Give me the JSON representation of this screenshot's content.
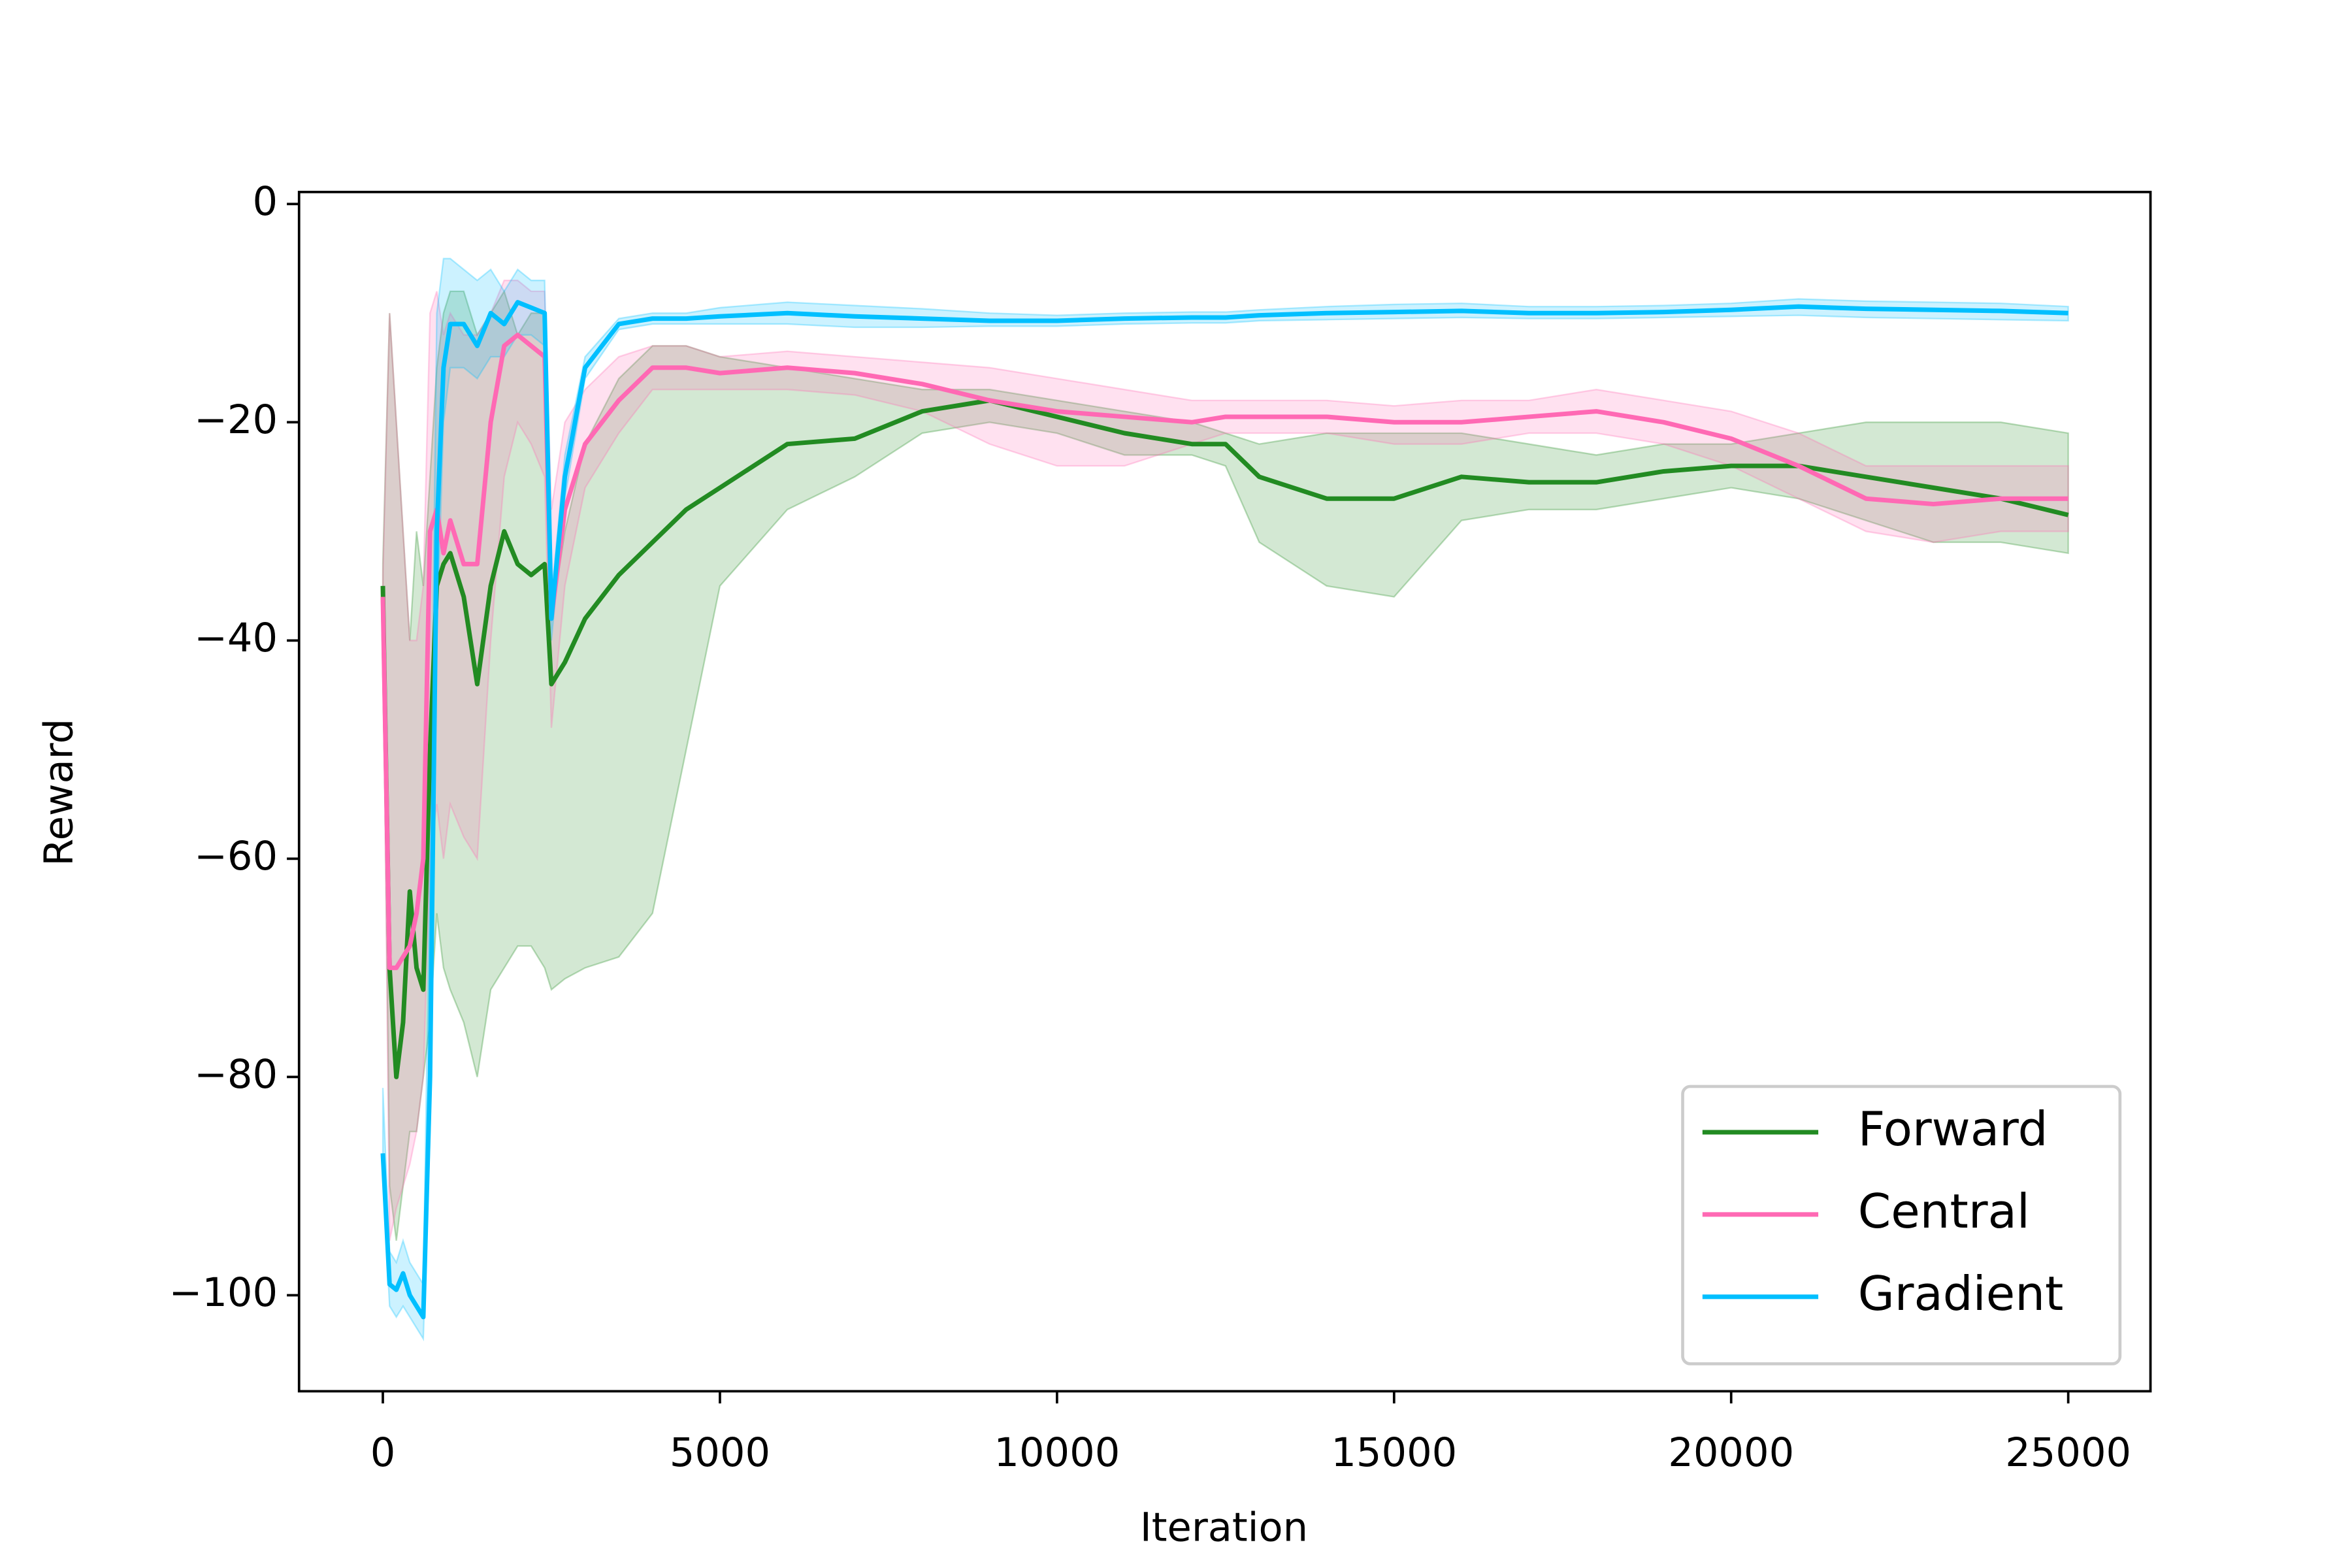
{
  "chart_data": {
    "type": "line",
    "x_label": "Iteration",
    "y_label": "Reward",
    "xlim": [
      -1243,
      26220
    ],
    "ylim": [
      -108.8,
      1.1
    ],
    "xticks": [
      0,
      5000,
      10000,
      15000,
      20000,
      25000
    ],
    "yticks": [
      0,
      {
        "value": -20,
        "label": "−20"
      },
      {
        "value": -40,
        "label": "−40"
      },
      {
        "value": -60,
        "label": "−60"
      },
      {
        "value": -80,
        "label": "−80"
      },
      {
        "value": -100,
        "label": "−100"
      }
    ],
    "legend": "lower right",
    "x": [
      0,
      100,
      200,
      300,
      400,
      500,
      600,
      700,
      800,
      900,
      1000,
      1200,
      1400,
      1600,
      1800,
      2000,
      2200,
      2400,
      2500,
      2700,
      3000,
      3500,
      4000,
      4500,
      5000,
      6000,
      7000,
      8000,
      9000,
      10000,
      11000,
      12000,
      12500,
      13000,
      14000,
      15000,
      16000,
      17000,
      18000,
      19000,
      20000,
      21000,
      22000,
      23000,
      24000,
      25000
    ],
    "series": [
      {
        "name": "Forward",
        "color": "#228b22",
        "values": [
          -35,
          -70,
          -80,
          -75,
          -63,
          -70,
          -72,
          -50,
          -35,
          -33,
          -32,
          -36,
          -44,
          -35,
          -30,
          -33,
          -34,
          -33,
          -44,
          -42,
          -38,
          -34,
          -31,
          -28,
          -26,
          -22,
          -21.5,
          -19,
          -18,
          -19.5,
          -21,
          -22,
          -22,
          -25,
          -27,
          -27,
          -25,
          -25.5,
          -25.5,
          -24.5,
          -24,
          -24,
          -25,
          -26,
          -27,
          -28.5
        ],
        "lower": [
          -36,
          -90,
          -95,
          -90,
          -85,
          -85,
          -80,
          -75,
          -65,
          -70,
          -72,
          -75,
          -80,
          -72,
          -70,
          -68,
          -68,
          -70,
          -72,
          -71,
          -70,
          -69,
          -65,
          -50,
          -35,
          -28,
          -25,
          -21,
          -20,
          -21,
          -23,
          -23,
          -24,
          -31,
          -35,
          -36,
          -29,
          -28,
          -28,
          -27,
          -26,
          -27,
          -29,
          -31,
          -31,
          -32
        ],
        "upper": [
          -33,
          -10,
          -20,
          -30,
          -40,
          -30,
          -35,
          -25,
          -15,
          -10,
          -8,
          -8,
          -12,
          -10,
          -8,
          -12,
          -10,
          -10,
          -38,
          -30,
          -22,
          -16,
          -13,
          -13,
          -14,
          -15,
          -16,
          -17,
          -17,
          -18,
          -19,
          -20,
          -21,
          -22,
          -21,
          -21,
          -21,
          -22,
          -23,
          -22,
          -22,
          -21,
          -20,
          -20,
          -20,
          -21
        ]
      },
      {
        "name": "Central",
        "color": "#ff69b4",
        "values": [
          -36,
          -70,
          -70,
          -69,
          -68,
          -65,
          -60,
          -30,
          -28,
          -32,
          -29,
          -33,
          -33,
          -20,
          -13,
          -12,
          -13,
          -14,
          -38,
          -28,
          -22,
          -18,
          -15,
          -15,
          -15.5,
          -15,
          -15.5,
          -16.5,
          -18,
          -19,
          -19.5,
          -20,
          -19.5,
          -19.5,
          -19.5,
          -20,
          -20,
          -19.5,
          -19,
          -20,
          -21.5,
          -24,
          -27,
          -27.5,
          -27,
          -27
        ],
        "lower": [
          -38,
          -95,
          -92,
          -90,
          -88,
          -85,
          -80,
          -60,
          -55,
          -60,
          -55,
          -58,
          -60,
          -40,
          -25,
          -20,
          -22,
          -25,
          -48,
          -35,
          -26,
          -21,
          -17,
          -17,
          -17,
          -17,
          -17.5,
          -19,
          -22,
          -24,
          -24,
          -22,
          -21,
          -21,
          -21,
          -22,
          -22,
          -21,
          -21,
          -22,
          -24,
          -27,
          -30,
          -31,
          -30,
          -30
        ],
        "upper": [
          -34,
          -10,
          -20,
          -30,
          -40,
          -40,
          -35,
          -10,
          -8,
          -12,
          -10,
          -12,
          -12,
          -10,
          -7,
          -7,
          -8,
          -8,
          -28,
          -20,
          -17,
          -14,
          -13,
          -13,
          -14,
          -13.5,
          -14,
          -14.5,
          -15,
          -16,
          -17,
          -18,
          -18,
          -18,
          -18,
          -18.5,
          -18,
          -18,
          -17,
          -18,
          -19,
          -21,
          -24,
          -24,
          -24,
          -24
        ]
      },
      {
        "name": "Gradient",
        "color": "#00bfff",
        "values": [
          -87,
          -99,
          -99.5,
          -98,
          -100,
          -101,
          -102,
          -80,
          -30,
          -15,
          -11,
          -11,
          -13,
          -10,
          -11,
          -9,
          -9.5,
          -10,
          -38,
          -25,
          -15,
          -11,
          -10.5,
          -10.5,
          -10.3,
          -10,
          -10.3,
          -10.5,
          -10.7,
          -10.7,
          -10.5,
          -10.4,
          -10.4,
          -10.2,
          -10,
          -9.9,
          -9.8,
          -10,
          -10,
          -9.9,
          -9.7,
          -9.4,
          -9.6,
          -9.7,
          -9.8,
          -10
        ],
        "lower": [
          -89,
          -101,
          -102,
          -101,
          -102,
          -103,
          -104,
          -85,
          -40,
          -20,
          -15,
          -15,
          -16,
          -14,
          -14,
          -12,
          -12,
          -13,
          -40,
          -27,
          -16,
          -11.5,
          -11,
          -11,
          -11,
          -11,
          -11.3,
          -11.3,
          -11.2,
          -11.2,
          -11,
          -10.9,
          -10.9,
          -10.7,
          -10.6,
          -10.5,
          -10.4,
          -10.5,
          -10.5,
          -10.4,
          -10.3,
          -10.2,
          -10.4,
          -10.5,
          -10.6,
          -10.7
        ],
        "upper": [
          -81,
          -96,
          -97,
          -95,
          -97,
          -98,
          -99,
          -60,
          -10,
          -5,
          -5,
          -6,
          -7,
          -6,
          -8,
          -6,
          -7,
          -7,
          -36,
          -23,
          -14,
          -10.5,
          -10,
          -10,
          -9.5,
          -9,
          -9.3,
          -9.6,
          -10,
          -10.2,
          -10,
          -9.9,
          -9.9,
          -9.7,
          -9.4,
          -9.2,
          -9.1,
          -9.4,
          -9.4,
          -9.3,
          -9.1,
          -8.7,
          -8.9,
          -9,
          -9.1,
          -9.4
        ]
      }
    ]
  }
}
